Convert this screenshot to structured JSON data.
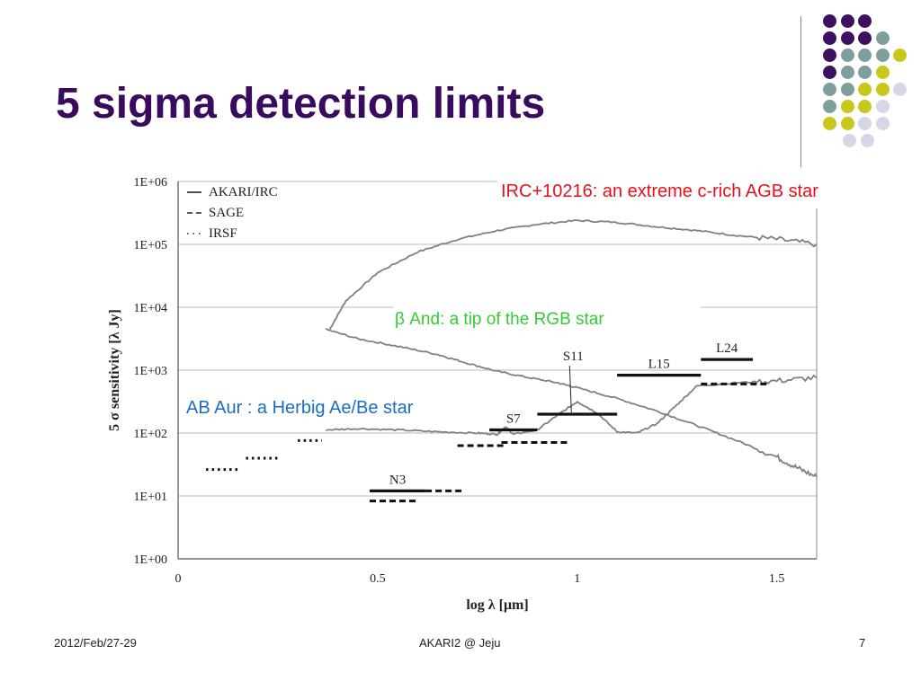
{
  "slide": {
    "title": "5 sigma detection limits",
    "title_color": "#3a0a5e"
  },
  "footer": {
    "left": "2012/Feb/27-29",
    "center": "AKARI2 @ Jeju",
    "right": "7"
  },
  "decoration": {
    "dots": [
      {
        "row": 0,
        "colors": [
          "#3d1060",
          "#3d1060",
          "#3d1060"
        ]
      },
      {
        "row": 1,
        "colors": [
          "#3d1060",
          "#3d1060",
          "#3d1060",
          "#7f9e9e"
        ]
      },
      {
        "row": 2,
        "colors": [
          "#3d1060",
          "#7f9e9e",
          "#7f9e9e",
          "#7f9e9e",
          "#c8c81c"
        ]
      },
      {
        "row": 3,
        "colors": [
          "#3d1060",
          "#7f9e9e",
          "#7f9e9e",
          "#c8c81c"
        ]
      },
      {
        "row": 4,
        "colors": [
          "#7f9e9e",
          "#7f9e9e",
          "#c8c81c",
          "#c8c81c",
          "#d6d6e6"
        ]
      },
      {
        "row": 5,
        "colors": [
          "#7f9e9e",
          "#c8c81c",
          "#c8c81c",
          "#d6d6e6"
        ]
      },
      {
        "row": 6,
        "colors": [
          "#c8c81c",
          "#c8c81c",
          "#d6d6e6",
          "#d6d6e6"
        ]
      },
      {
        "row": 7,
        "colors": [
          "#d6d6e6",
          "#d6d6e6"
        ]
      }
    ]
  },
  "annotations": {
    "irc": {
      "text": "IRC+10216: an extreme c-rich AGB star",
      "color": "#e8101a"
    },
    "beta": {
      "text": "β And: a tip of  the RGB star",
      "color": "#33cc33"
    },
    "abaur": {
      "text": "AB Aur : a Herbig Ae/Be star",
      "color": "#1a6fc4"
    }
  },
  "chart_data": {
    "type": "line",
    "xlabel": "log λ [μm]",
    "ylabel": "5 σ sensitivity [λ Jy]",
    "xlim": [
      0,
      1.6
    ],
    "ylim_log10": [
      0,
      6
    ],
    "y_scale": "log",
    "grid": "horizontal",
    "x_ticks": [
      {
        "v": 0,
        "label": "0"
      },
      {
        "v": 0.5,
        "label": "0.5"
      },
      {
        "v": 1,
        "label": "1"
      },
      {
        "v": 1.5,
        "label": "1.5"
      }
    ],
    "y_ticks": [
      {
        "v": 0,
        "label": "1E+00"
      },
      {
        "v": 1,
        "label": "1E+01"
      },
      {
        "v": 2,
        "label": "1E+02"
      },
      {
        "v": 3,
        "label": "1E+03"
      },
      {
        "v": 4,
        "label": "1E+04"
      },
      {
        "v": 5,
        "label": "1E+05"
      },
      {
        "v": 6,
        "label": "1E+06"
      }
    ],
    "legend": [
      {
        "label": "AKARI/IRC",
        "style": "solid"
      },
      {
        "label": "SAGE",
        "style": "dashed"
      },
      {
        "label": "IRSF",
        "style": "dotted"
      }
    ],
    "legend_position": "top-left",
    "series": [
      {
        "name": "IRC+10216",
        "style": "spectrum",
        "color": "#808080",
        "points": [
          [
            0.38,
            3.65
          ],
          [
            0.42,
            4.1
          ],
          [
            0.5,
            4.55
          ],
          [
            0.6,
            4.88
          ],
          [
            0.7,
            5.08
          ],
          [
            0.8,
            5.22
          ],
          [
            0.9,
            5.32
          ],
          [
            1.0,
            5.38
          ],
          [
            1.1,
            5.35
          ],
          [
            1.2,
            5.28
          ],
          [
            1.3,
            5.22
          ],
          [
            1.4,
            5.14
          ],
          [
            1.5,
            5.08
          ],
          [
            1.6,
            5.0
          ]
        ]
      },
      {
        "name": "β And",
        "style": "spectrum",
        "color": "#808080",
        "points": [
          [
            0.37,
            3.65
          ],
          [
            0.45,
            3.5
          ],
          [
            0.55,
            3.38
          ],
          [
            0.65,
            3.25
          ],
          [
            0.72,
            3.12
          ],
          [
            0.8,
            2.98
          ],
          [
            0.88,
            2.88
          ],
          [
            0.95,
            2.8
          ],
          [
            1.0,
            2.72
          ],
          [
            1.1,
            2.55
          ],
          [
            1.2,
            2.35
          ],
          [
            1.3,
            2.12
          ],
          [
            1.4,
            1.88
          ],
          [
            1.5,
            1.62
          ],
          [
            1.55,
            1.45
          ],
          [
            1.6,
            1.3
          ]
        ]
      },
      {
        "name": "AB Aur",
        "style": "spectrum",
        "color": "#808080",
        "points": [
          [
            0.37,
            2.05
          ],
          [
            0.45,
            2.07
          ],
          [
            0.55,
            2.05
          ],
          [
            0.65,
            2.02
          ],
          [
            0.75,
            2.0
          ],
          [
            0.8,
            1.98
          ],
          [
            0.82,
            2.1
          ],
          [
            0.84,
            1.98
          ],
          [
            0.9,
            2.05
          ],
          [
            0.95,
            2.28
          ],
          [
            1.0,
            2.5
          ],
          [
            1.05,
            2.32
          ],
          [
            1.1,
            2.02
          ],
          [
            1.15,
            2.0
          ],
          [
            1.2,
            2.15
          ],
          [
            1.25,
            2.45
          ],
          [
            1.3,
            2.75
          ],
          [
            1.4,
            2.8
          ],
          [
            1.5,
            2.83
          ],
          [
            1.6,
            2.88
          ]
        ]
      }
    ],
    "bands": [
      {
        "label": "N3",
        "x": [
          0.48,
          0.62
        ],
        "y": 1.08,
        "style": "solid",
        "label_pos": "above"
      },
      {
        "label": "",
        "x": [
          0.62,
          0.71
        ],
        "y": 1.08,
        "style": "dashed"
      },
      {
        "label": "",
        "x": [
          0.48,
          0.6
        ],
        "y": 0.92,
        "style": "dashed"
      },
      {
        "label": "S7",
        "x": [
          0.78,
          0.9
        ],
        "y": 2.05,
        "style": "solid",
        "label_pos": "above"
      },
      {
        "label": "",
        "x": [
          0.7,
          0.82
        ],
        "y": 1.8,
        "style": "dashed"
      },
      {
        "label": "",
        "x": [
          0.81,
          0.98
        ],
        "y": 1.85,
        "style": "dashed"
      },
      {
        "label": "S11",
        "x": [
          0.9,
          1.1
        ],
        "y": 2.3,
        "style": "solid",
        "label_pos": "pointer"
      },
      {
        "label": "L15",
        "x": [
          1.1,
          1.31
        ],
        "y": 2.92,
        "style": "solid",
        "label_pos": "above"
      },
      {
        "label": "L24",
        "x": [
          1.31,
          1.44
        ],
        "y": 3.17,
        "style": "solid",
        "label_pos": "above"
      },
      {
        "label": "",
        "x": [
          1.31,
          1.48
        ],
        "y": 2.78,
        "style": "dashed"
      },
      {
        "label": "",
        "x": [
          0.07,
          0.15
        ],
        "y": 1.42,
        "style": "dotted"
      },
      {
        "label": "",
        "x": [
          0.17,
          0.25
        ],
        "y": 1.6,
        "style": "dotted"
      },
      {
        "label": "",
        "x": [
          0.3,
          0.36
        ],
        "y": 1.88,
        "style": "dotted"
      }
    ]
  }
}
